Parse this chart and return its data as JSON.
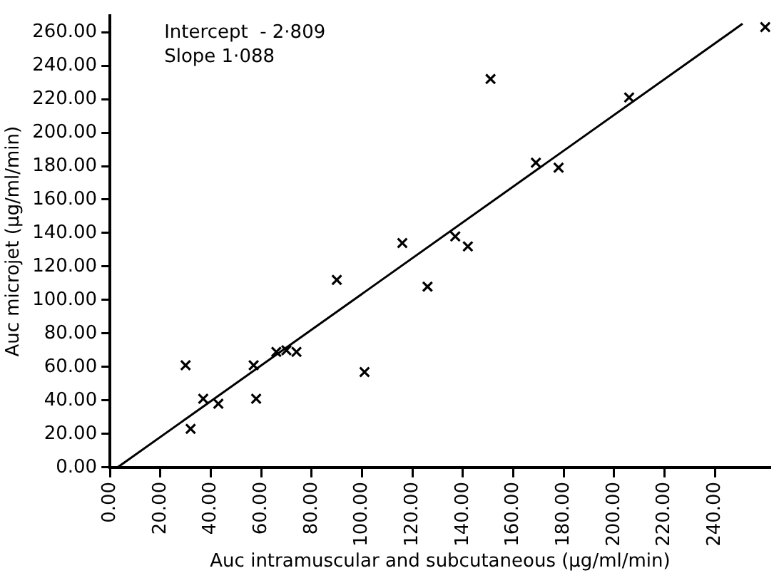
{
  "chart_data": {
    "type": "scatter",
    "xlabel": "Auc intramuscular and subcutaneous (μg/ml/min)",
    "ylabel": "Auc microjet (μg/ml/min)",
    "annotations": [
      "Intercept  - 2·809",
      "Slope 1·088"
    ],
    "xlim": [
      0,
      262
    ],
    "ylim": [
      0,
      270
    ],
    "xticks": [
      {
        "value": 0,
        "label": "0.00"
      },
      {
        "value": 20,
        "label": "20.00"
      },
      {
        "value": 40,
        "label": "40.00"
      },
      {
        "value": 60,
        "label": "60.00"
      },
      {
        "value": 80,
        "label": "80.00"
      },
      {
        "value": 100,
        "label": "100.00"
      },
      {
        "value": 120,
        "label": "120.00"
      },
      {
        "value": 140,
        "label": "140.00"
      },
      {
        "value": 160,
        "label": "160.00"
      },
      {
        "value": 180,
        "label": "180.00"
      },
      {
        "value": 200,
        "label": "200.00"
      },
      {
        "value": 220,
        "label": "220.00"
      },
      {
        "value": 240,
        "label": "240.00"
      }
    ],
    "yticks": [
      {
        "value": 0,
        "label": "0.00"
      },
      {
        "value": 20,
        "label": "20.00"
      },
      {
        "value": 40,
        "label": "40.00"
      },
      {
        "value": 60,
        "label": "60.00"
      },
      {
        "value": 80,
        "label": "80.00"
      },
      {
        "value": 100,
        "label": "100.00"
      },
      {
        "value": 120,
        "label": "120.00"
      },
      {
        "value": 140,
        "label": "140.00"
      },
      {
        "value": 160,
        "label": "160.00"
      },
      {
        "value": 180,
        "label": "180.00"
      },
      {
        "value": 200,
        "label": "200.00"
      },
      {
        "value": 220,
        "label": "220.00"
      },
      {
        "value": 240,
        "label": "240.00"
      },
      {
        "value": 260,
        "label": "260.00"
      }
    ],
    "grid": false,
    "marker": "cross",
    "series": [
      {
        "color": "#000000",
        "x": [
          30,
          32,
          37,
          43,
          57,
          58,
          66,
          70,
          74,
          90,
          101,
          126,
          116,
          137,
          142,
          151,
          169,
          178,
          206,
          260
        ],
        "values": [
          61,
          23,
          41,
          38,
          61,
          41,
          69,
          70,
          69,
          112,
          57,
          108,
          134,
          138,
          132,
          232,
          182,
          179,
          221,
          263
        ]
      },
      {
        "type": "line",
        "color": "#000000",
        "marker": "none",
        "x": [
          3,
          251
        ],
        "values": [
          0,
          265
        ]
      }
    ]
  }
}
